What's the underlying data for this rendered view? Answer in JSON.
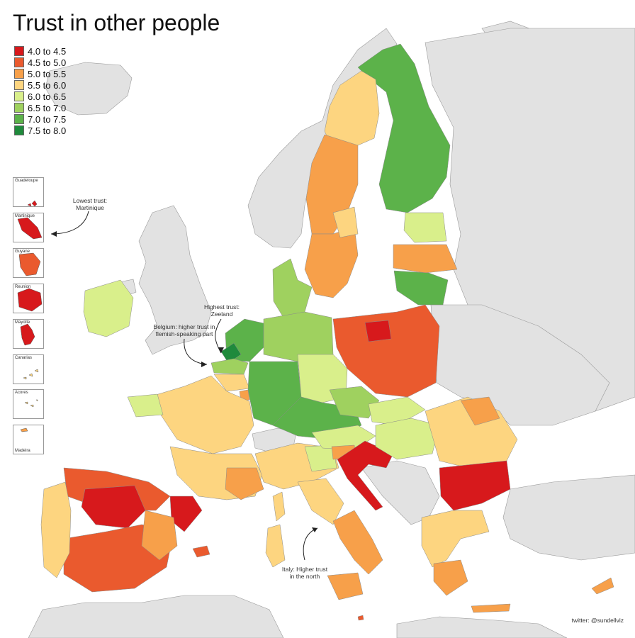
{
  "title": "Trust in other people",
  "legend": [
    {
      "label": "4.0 to 4.5",
      "color": "#d7191c"
    },
    {
      "label": "4.5 to 5.0",
      "color": "#ea5a2e"
    },
    {
      "label": "5.0 to 5.5",
      "color": "#f7a04a"
    },
    {
      "label": "5.5 to 6.0",
      "color": "#fdd580"
    },
    {
      "label": "6.0 to 6.5",
      "color": "#d9ef8b"
    },
    {
      "label": "6.5 to 7.0",
      "color": "#9fd15f"
    },
    {
      "label": "7.0 to 7.5",
      "color": "#5cb24a"
    },
    {
      "label": "7.5 to 8.0",
      "color": "#1f8a3c"
    }
  ],
  "insets": [
    {
      "label": "Guadeloupe",
      "fill": "#d7191c"
    },
    {
      "label": "Martinique",
      "fill": "#d7191c"
    },
    {
      "label": "Guyane",
      "fill": "#ea5a2e"
    },
    {
      "label": "Reunion",
      "fill": "#d7191c"
    },
    {
      "label": "Mayotte",
      "fill": "#d7191c"
    },
    {
      "label": "Canarias",
      "fill": "#fdd580"
    },
    {
      "label": "Acores",
      "fill": "#fdd580"
    },
    {
      "label": "Madeira",
      "fill": "#f7a04a"
    }
  ],
  "annotations": {
    "lowest": "Lowest trust:\nMartinique",
    "highest": "Highest trust:\nZeeland",
    "belgium": "Belgium: higher trust in\nflemish-speaking part",
    "italy": "Italy: Higher trust\nin the north"
  },
  "credit": "twitter: @sundellviz"
}
